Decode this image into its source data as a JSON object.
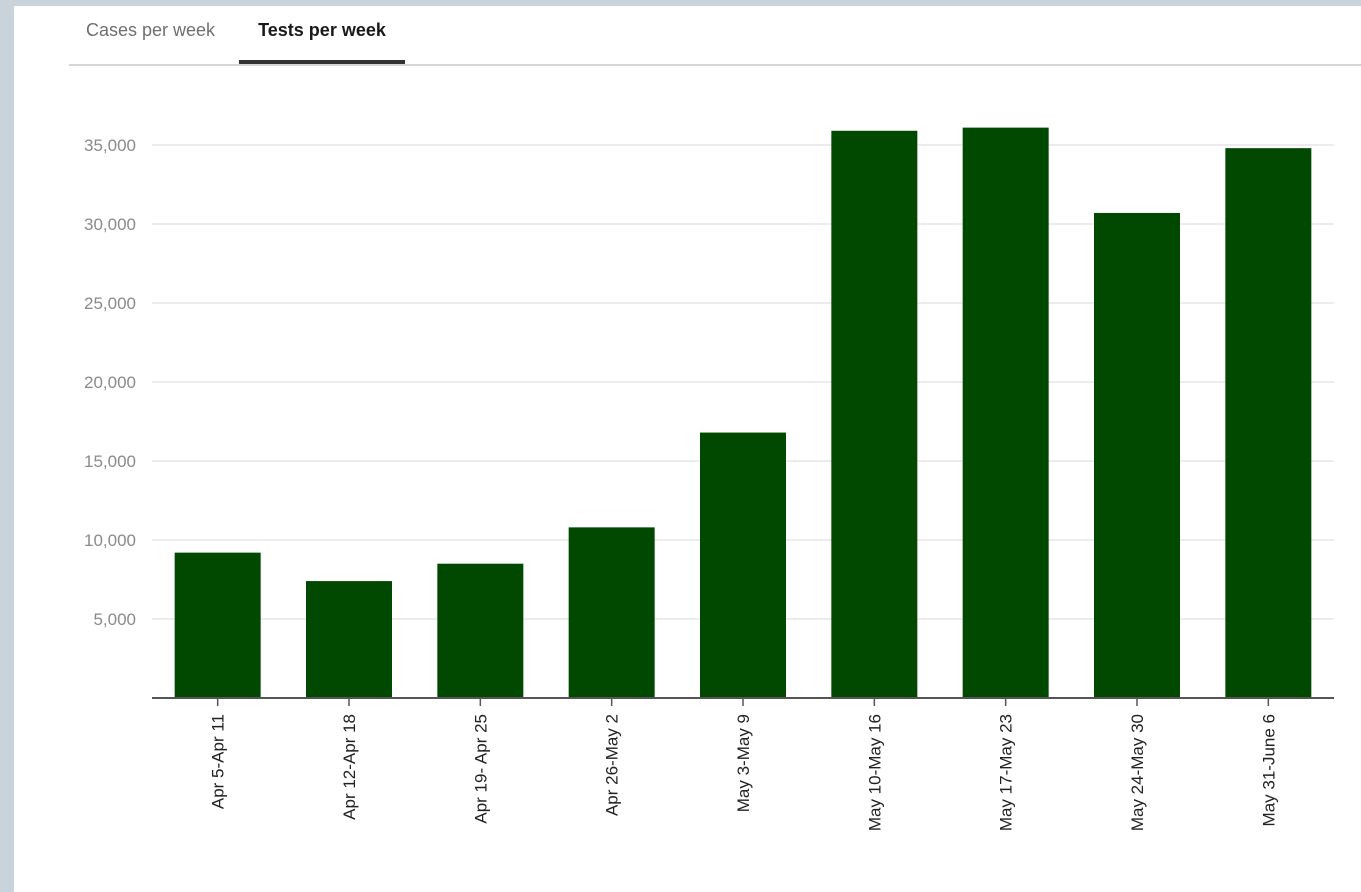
{
  "tabs": [
    {
      "label": "Cases per week",
      "active": false
    },
    {
      "label": "Tests per week",
      "active": true
    }
  ],
  "colors": {
    "bar": "#014901",
    "grid": "#ececec",
    "axis": "#555555"
  },
  "chart_data": {
    "type": "bar",
    "categories": [
      "Apr 5-Apr 11",
      "Apr 12-Apr 18",
      "Apr 19- Apr 25",
      "Apr 26-May 2",
      "May 3-May 9",
      "May 10-May 16",
      "May 17-May 23",
      "May 24-May 30",
      "May 31-June 6"
    ],
    "values": [
      9200,
      7400,
      8500,
      10800,
      16800,
      35900,
      36100,
      30700,
      34800
    ],
    "yticks": [
      5000,
      10000,
      15000,
      20000,
      25000,
      30000,
      35000
    ],
    "ytick_labels": [
      "5,000",
      "10,000",
      "15,000",
      "20,000",
      "25,000",
      "30,000",
      "35,000"
    ],
    "ylim": [
      0,
      40000
    ],
    "grid": true,
    "title": "",
    "xlabel": "",
    "ylabel": ""
  }
}
